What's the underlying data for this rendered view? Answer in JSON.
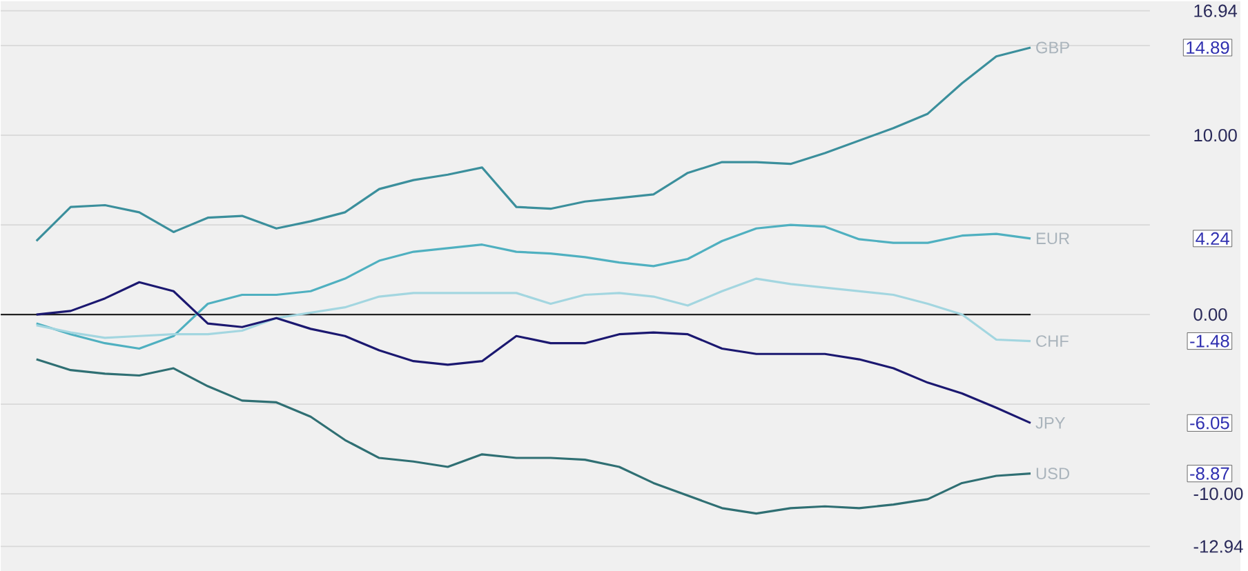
{
  "chart_data": {
    "type": "line",
    "tick_labels": "y",
    "grid": "y",
    "line_style": "solid",
    "categories": [
      null,
      null,
      null,
      null,
      null,
      null,
      null,
      null,
      null,
      null,
      null,
      null,
      null,
      null,
      null,
      null,
      null,
      null,
      null,
      null,
      null,
      null,
      null,
      null,
      null,
      null,
      null,
      null,
      null,
      null
    ],
    "ylim": [
      -12.94,
      16.94
    ],
    "yticks": [
      {
        "value": 16.94,
        "label": "16.94"
      },
      {
        "value": 15,
        "label": null
      },
      {
        "value": 10,
        "label": "10.00"
      },
      {
        "value": 5,
        "label": null
      },
      {
        "value": 0,
        "label": "0.00"
      },
      {
        "value": -5,
        "label": null
      },
      {
        "value": -10,
        "label": "-10.00"
      },
      {
        "value": -12.94,
        "label": "-12.94"
      }
    ],
    "ref_lines": [
      {
        "axis": "y",
        "value": 0,
        "color": "#222222"
      }
    ],
    "series": [
      {
        "name": "GBP",
        "color": "#3b8f9c",
        "values": [
          4.1,
          6.0,
          6.1,
          5.7,
          4.6,
          5.4,
          5.5,
          4.8,
          5.2,
          5.7,
          7.0,
          7.5,
          7.8,
          8.2,
          6.0,
          5.9,
          6.3,
          6.5,
          6.7,
          7.9,
          8.5,
          8.5,
          8.4,
          9.0,
          9.7,
          10.4,
          11.2,
          12.9,
          14.4,
          14.89
        ]
      },
      {
        "name": "EUR",
        "color": "#4fb0c0",
        "values": [
          -0.5,
          -1.1,
          -1.6,
          -1.9,
          -1.2,
          0.6,
          1.1,
          1.1,
          1.3,
          2.0,
          3.0,
          3.5,
          3.7,
          3.9,
          3.5,
          3.4,
          3.2,
          2.9,
          2.7,
          3.1,
          4.1,
          4.8,
          5.0,
          4.9,
          4.2,
          4.0,
          4.0,
          4.4,
          4.5,
          4.24
        ]
      },
      {
        "name": "CHF",
        "color": "#a3d6e0",
        "values": [
          -0.6,
          -1.0,
          -1.3,
          -1.2,
          -1.1,
          -1.1,
          -0.9,
          -0.2,
          0.1,
          0.4,
          1.0,
          1.2,
          1.2,
          1.2,
          1.2,
          0.6,
          1.1,
          1.2,
          1.0,
          0.5,
          1.3,
          2.0,
          1.7,
          1.5,
          1.3,
          1.1,
          0.6,
          0.0,
          -1.4,
          -1.48
        ]
      },
      {
        "name": "JPY",
        "color": "#1b1870",
        "values": [
          0,
          0.2,
          0.9,
          1.8,
          1.3,
          -0.5,
          -0.7,
          -0.2,
          -0.8,
          -1.2,
          -2.0,
          -2.6,
          -2.8,
          -2.6,
          -1.2,
          -1.6,
          -1.6,
          -1.1,
          -1.0,
          -1.1,
          -1.9,
          -2.2,
          -2.2,
          -2.2,
          -2.5,
          -3.0,
          -3.8,
          -4.4,
          -5.2,
          -6.05
        ]
      },
      {
        "name": "USD",
        "color": "#2f6f73",
        "values": [
          -2.5,
          -3.1,
          -3.3,
          -3.4,
          -3.0,
          -4.0,
          -4.8,
          -4.9,
          -5.7,
          -7.0,
          -8.0,
          -8.2,
          -8.5,
          -7.8,
          -8.0,
          -8.0,
          -8.1,
          -8.5,
          -9.4,
          -10.1,
          -10.8,
          -11.1,
          -10.8,
          -10.7,
          -10.8,
          -10.6,
          -10.3,
          -9.4,
          -9.0,
          -8.87
        ]
      }
    ],
    "annotations": [
      "14.89",
      "4.24",
      "-1.48",
      "-6.05",
      "-8.87"
    ]
  }
}
